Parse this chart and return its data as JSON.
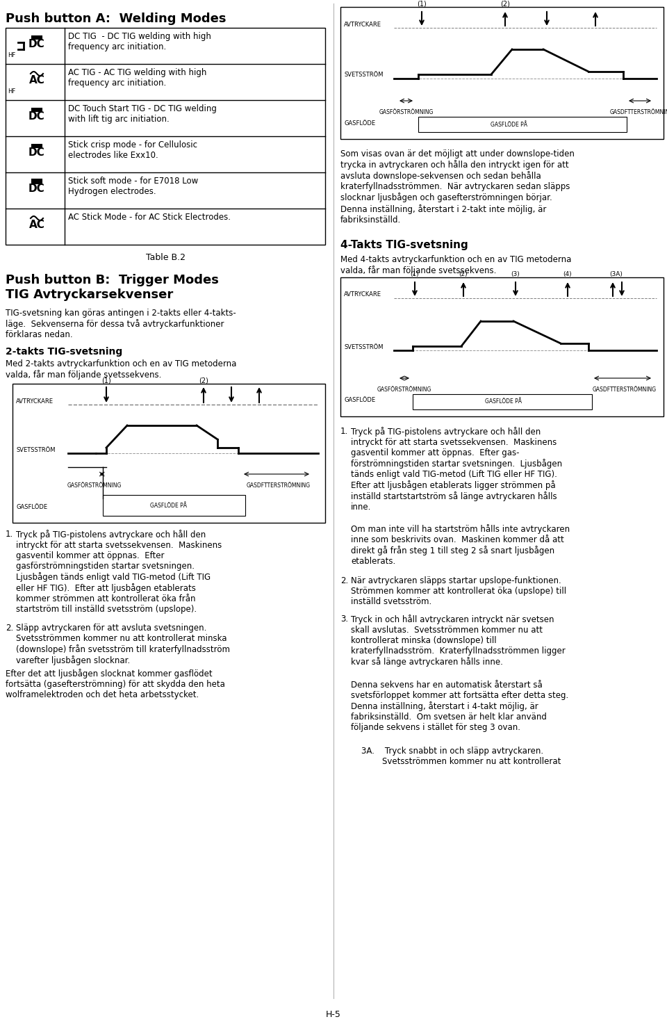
{
  "title_A": "Push button A:  Welding Modes",
  "table_rows": [
    {
      "icon_text": "HF  DC",
      "description": "DC TIG  - DC TIG welding with high\nfrequency arc initiation."
    },
    {
      "icon_text": "HF  AC",
      "description": "AC TIG - AC TIG welding with high\nfrequency arc initiation."
    },
    {
      "icon_text": "|  DC",
      "description": "DC Touch Start TIG - DC TIG welding\nwith lift tig arc initiation."
    },
    {
      "icon_text": "stick DC crisp",
      "description": "Stick crisp mode - for Cellulosic\nelectrodes like Exx10."
    },
    {
      "icon_text": "stick DC soft",
      "description": "Stick soft mode - for E7018 Low\nHydrogen electrodes."
    },
    {
      "icon_text": "stick AC",
      "description": "AC Stick Mode - for AC Stick Electrodes."
    }
  ],
  "table_caption": "Table B.2",
  "title_B": "Push button B:  Trigger Modes\nTIG Avtryckarsekvenser",
  "intro_text": "TIG-svetsning kan göras antingen i 2-takts eller 4-takts-\nläge.  Sekvenserna för dessa två avtryckarfunktioner\nförklaras nedan.",
  "section_2takt_title": "2-takts TIG-svetsning",
  "section_2takt_intro": "Med 2-takts avtryckarfunktion och en av TIG metoderna\nvalda, får man följande svetssekvens.",
  "diagram1_labels": {
    "avtryckare": "AVTRYCKARE",
    "svetsström": "SVETSSTRÖM",
    "gasförströmning": "GASFÖRSTRÖMNING",
    "gasdftströmning": "GASDFTTERSTRÖMNING",
    "gasflöde": "GASFLÖDE",
    "gasflöde_på": "GASFLÖDE PÅ",
    "label1": "(1)",
    "label2": "(2)"
  },
  "step1_text": "Tryck på TIG-pistolens avtryckare och håll den\nintryckt för att starta svetssekvensen.  Maskinens\ngasventil kommer att öppnas.  Efter\ngasförströmningstiden startar svetsningen.\nLjusbågen tänds enligt vald TIG-metod (Lift TIG\neller HF TIG).  Efter att ljusbågen etablerats\nkommer strömmen att kontrollerat öka från\nstartström till inställd svetsström (upslope).",
  "step2_text": "Släpp avtryckaren för att avsluta svetsningen.\nSvetsströmmen kommer nu att kontrollerat minska\n(downslope) från svetsström till kraterfyllnadsström\nvarefter ljusbågen slocknar.",
  "step2b_text": "Efter det att ljusbågen slocknat kommer gasflödet\nfortsätta (gasefterströmning) för att skydda den heta\nwolframelektroden och det heta arbetsstycket.",
  "right_top_paragraph": "Som visas ovan är det möjligt att under downslope-tiden\ntrycka in avtryckaren och hålla den intryckt igen för att\navsluta downslope-sekvensen och sedan behålla\nkraterfyllnadsströmmen.  När avtryckaren sedan släpps\nslocknar ljusbågen och gasefterströmningen börjar.\nDenna inställning, återstart i 2-takt inte möjlig, är\nfabriksinställd.",
  "section_4takt_title": "4-Takts TIG-svetsning",
  "section_4takt_intro": "Med 4-takts avtryckarfunktion och en av TIG metoderna\nvalda, får man följande svetssekvens.",
  "diagram2_labels": {
    "label1": "(1)",
    "label2": "(2)",
    "label3": "(3)",
    "label4": "(4)",
    "label3a": "(3A)"
  },
  "right_step1_text": "Tryck på TIG-pistolens avtryckare och håll den\nintryckt för att starta svetssekvensen.  Maskinens\ngasventil kommer att öppnas.  Efter gas-\nförströmningstiden startar svetsningen.  Ljusbågen\ntänds enligt vald TIG-metod (Lift TIG eller HF TIG).\nEfter att ljusbågen etablerats ligger strömmen på\ninställd startstartström så länge avtryckaren hålls\ninne.",
  "right_step1b_text": "Om man inte vill ha startström hålls inte avtryckaren\ninne som beskrivits ovan.  Maskinen kommer då att\ndirekt gå från steg 1 till steg 2 så snart ljusbågen\netablerats.",
  "right_step2_text": "När avtryckaren släpps startar upslope-funktionen.\nStrömmen kommer att kontrollerat öka (upslope) till\ninställd svetsström.",
  "right_step3_text": "Tryck in och håll avtryckaren intryckt när svetsen\nskall avslutas.  Svetsströmmen kommer nu att\nkontrollerat minska (downslope) till\nkraterfyllnadsström.  Kraterfyllnadsströmmen ligger\nkvar så länge avtryckaren hålls inne.",
  "right_step3b_text": "Denna sekvens har en automatisk återstart så\nsvetsförloppet kommer att fortsätta efter detta steg.\nDenna inställning, återstart i 4-takt möjlig, är\nfabriksinställd.  Om svetsen är helt klar använd\nföljande sekvens i stället för steg 3 ovan.",
  "right_step3a_text": "3A.    Tryck snabbt in och släpp avtryckaren.\n        Svetsströmmen kommer nu att kontrollerat",
  "page_footer": "H-5",
  "bg_color": "#ffffff",
  "border_color": "#000000",
  "text_color": "#000000",
  "table_border_color": "#000000",
  "diagram_bg": "#f5f5f5",
  "font_size_title": 14,
  "font_size_body": 8.5,
  "font_size_small": 7
}
